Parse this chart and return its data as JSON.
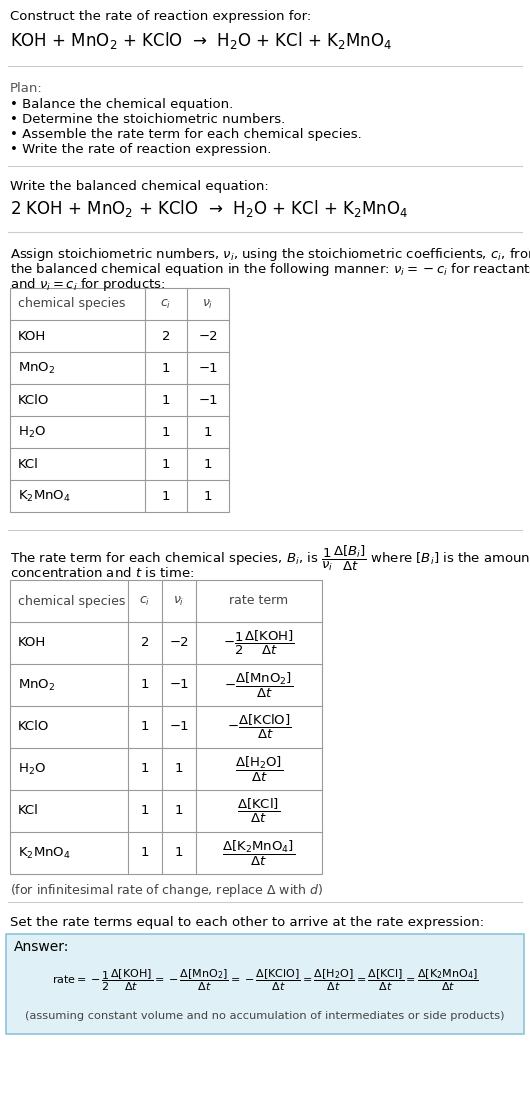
{
  "bg_color": "#ffffff",
  "text_color": "#000000",
  "light_blue_bg": "#dff0f7",
  "title_text": "Construct the rate of reaction expression for:",
  "reaction_unbalanced": "KOH + MnO$_2$ + KClO  →  H$_2$O + KCl + K$_2$MnO$_4$",
  "plan_title": "Plan:",
  "plan_items": [
    "• Balance the chemical equation.",
    "• Determine the stoichiometric numbers.",
    "• Assemble the rate term for each chemical species.",
    "• Write the rate of reaction expression."
  ],
  "balanced_label": "Write the balanced chemical equation:",
  "reaction_balanced": "2 KOH + MnO$_2$ + KClO  →  H$_2$O + KCl + K$_2$MnO$_4$",
  "assign_text1": "Assign stoichiometric numbers, $\\nu_i$, using the stoichiometric coefficients, $c_i$, from",
  "assign_text2": "the balanced chemical equation in the following manner: $\\nu_i = -c_i$ for reactants",
  "assign_text3": "and $\\nu_i = c_i$ for products:",
  "table1_headers": [
    "chemical species",
    "$c_i$",
    "$\\nu_i$"
  ],
  "table1_rows": [
    [
      "KOH",
      "2",
      "−2"
    ],
    [
      "MnO$_2$",
      "1",
      "−1"
    ],
    [
      "KClO",
      "1",
      "−1"
    ],
    [
      "H$_2$O",
      "1",
      "1"
    ],
    [
      "KCl",
      "1",
      "1"
    ],
    [
      "K$_2$MnO$_4$",
      "1",
      "1"
    ]
  ],
  "rate_term_text1": "The rate term for each chemical species, $B_i$, is $\\dfrac{1}{\\nu_i}\\dfrac{\\Delta[B_i]}{\\Delta t}$ where $[B_i]$ is the amount",
  "rate_term_text2": "concentration and $t$ is time:",
  "table2_headers": [
    "chemical species",
    "$c_i$",
    "$\\nu_i$",
    "rate term"
  ],
  "table2_rows": [
    [
      "KOH",
      "2",
      "−2",
      "$-\\dfrac{1}{2}\\dfrac{\\Delta[\\mathrm{KOH}]}{\\Delta t}$"
    ],
    [
      "MnO$_2$",
      "1",
      "−1",
      "$-\\dfrac{\\Delta[\\mathrm{MnO_2}]}{\\Delta t}$"
    ],
    [
      "KClO",
      "1",
      "−1",
      "$-\\dfrac{\\Delta[\\mathrm{KClO}]}{\\Delta t}$"
    ],
    [
      "H$_2$O",
      "1",
      "1",
      "$\\dfrac{\\Delta[\\mathrm{H_2O}]}{\\Delta t}$"
    ],
    [
      "KCl",
      "1",
      "1",
      "$\\dfrac{\\Delta[\\mathrm{KCl}]}{\\Delta t}$"
    ],
    [
      "K$_2$MnO$_4$",
      "1",
      "1",
      "$\\dfrac{\\Delta[\\mathrm{K_2MnO_4}]}{\\Delta t}$"
    ]
  ],
  "infinitesimal_note": "(for infinitesimal rate of change, replace Δ with $d$)",
  "set_equal_text": "Set the rate terms equal to each other to arrive at the rate expression:",
  "answer_label": "Answer:",
  "rate_expression": "$\\mathrm{rate} = -\\dfrac{1}{2}\\dfrac{\\Delta[\\mathrm{KOH}]}{\\Delta t} = -\\dfrac{\\Delta[\\mathrm{MnO_2}]}{\\Delta t} = -\\dfrac{\\Delta[\\mathrm{KClO}]}{\\Delta t} = \\dfrac{\\Delta[\\mathrm{H_2O}]}{\\Delta t} = \\dfrac{\\Delta[\\mathrm{KCl}]}{\\Delta t} = \\dfrac{\\Delta[\\mathrm{K_2MnO_4}]}{\\Delta t}$",
  "assuming_note": "(assuming constant volume and no accumulation of intermediates or side products)"
}
